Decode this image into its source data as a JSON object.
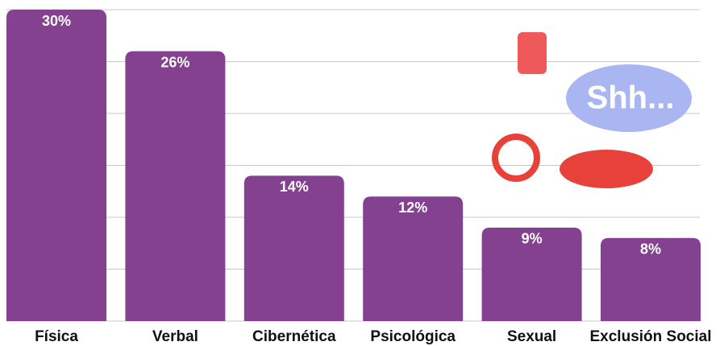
{
  "chart_data": {
    "type": "bar",
    "categories": [
      "Física",
      "Verbal",
      "Cibernética",
      "Psicológica",
      "Sexual",
      "Exclusión Social"
    ],
    "values": [
      30,
      26,
      14,
      12,
      9,
      8
    ],
    "value_labels": [
      "30%",
      "26%",
      "14%",
      "12%",
      "9%",
      "8%"
    ],
    "color": "#84418f",
    "ylim": [
      0,
      30
    ],
    "yticks": [
      0,
      5,
      10,
      15,
      20,
      25,
      30
    ],
    "grid": true,
    "annotation": "Shh..."
  }
}
